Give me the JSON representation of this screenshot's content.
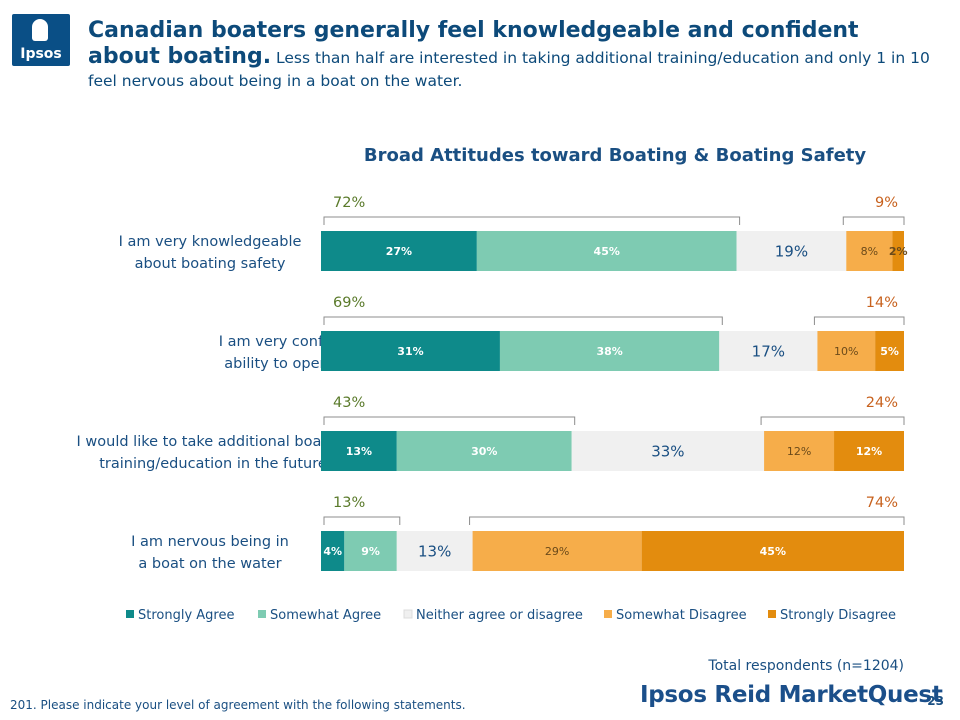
{
  "logo": {
    "text": "Ipsos"
  },
  "headline": {
    "bold": "Canadian boaters generally feel knowledgeable and confident about boating.",
    "rest": " Less than half are interested in taking additional training/education and only 1 in 10 feel nervous about being in a boat on the water."
  },
  "chart_data": {
    "type": "bar",
    "orientation": "horizontal",
    "stacked": true,
    "title": "Broad Attitudes toward Boating & Boating Safety",
    "categories": [
      "I am very knowledgeable about boating safety",
      "I am very confident in my ability to operate a boat",
      "I would like to take additional boating training/education in the future",
      "I am nervous being in a boat on the water"
    ],
    "series": [
      {
        "name": "Strongly Agree",
        "values": [
          27,
          31,
          13,
          4
        ]
      },
      {
        "name": "Somewhat Agree",
        "values": [
          45,
          38,
          30,
          9
        ]
      },
      {
        "name": "Neither agree or disagree",
        "values": [
          19,
          17,
          33,
          13
        ]
      },
      {
        "name": "Somewhat Disagree",
        "values": [
          8,
          10,
          12,
          29
        ]
      },
      {
        "name": "Strongly Disagree",
        "values": [
          2,
          5,
          12,
          45
        ]
      }
    ],
    "segment_labels": [
      [
        "27%",
        "45%",
        "19%",
        "8%",
        "2%"
      ],
      [
        "31%",
        "38%",
        "17%",
        "10%",
        "5%"
      ],
      [
        "13%",
        "30%",
        "33%",
        "12%",
        "12%"
      ],
      [
        "4%",
        "9%",
        "13%",
        "29%",
        "45%"
      ]
    ],
    "agree_totals": [
      "72%",
      "69%",
      "43%",
      "13%"
    ],
    "disagree_totals": [
      "9%",
      "14%",
      "24%",
      "74%"
    ],
    "legend_position": "bottom",
    "colors": {
      "Strongly Agree": "#0e8a8a",
      "Somewhat Agree": "#7ecbb2",
      "Neither agree or disagree": "#f0f0f0",
      "Somewhat Disagree": "#f6ad4a",
      "Strongly Disagree": "#e38c0e"
    }
  },
  "footer": {
    "total": "Total respondents (n=1204)",
    "footnote": "201. Please indicate your level of agreement with the following statements.",
    "brand": "Ipsos Reid MarketQuest",
    "page_number": "23"
  }
}
